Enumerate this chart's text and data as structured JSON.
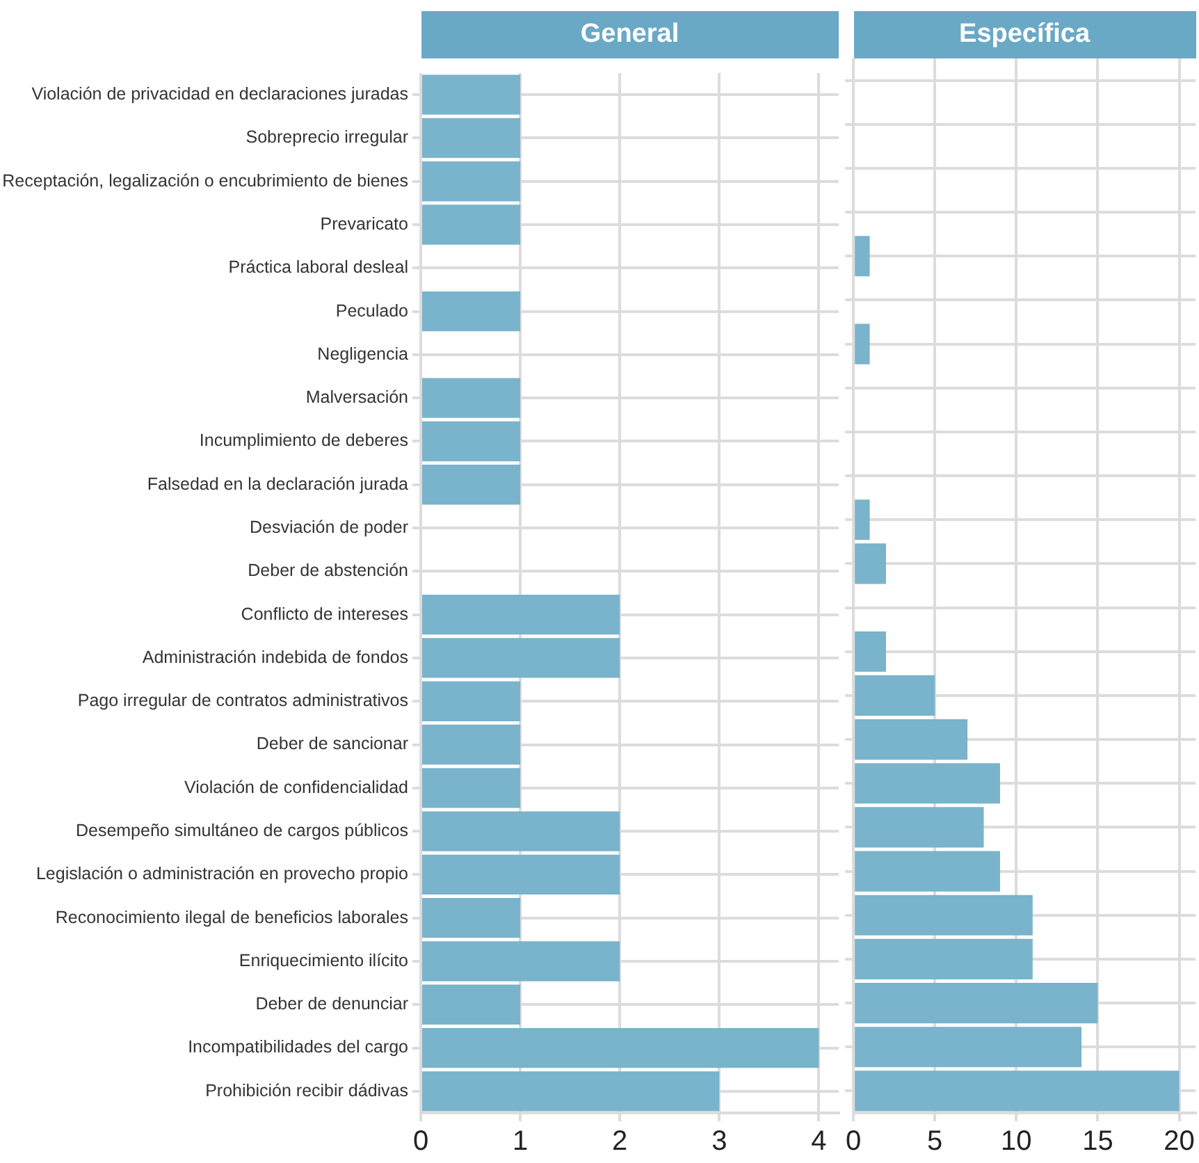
{
  "chart_data": [
    {
      "type": "bar",
      "orientation": "horizontal",
      "title": "General",
      "categories": [
        "Violación de privacidad en declaraciones juradas",
        "Sobreprecio irregular",
        "Receptación, legalización o encubrimiento de bienes",
        "Prevaricato",
        "Práctica laboral desleal",
        "Peculado",
        "Negligencia",
        "Malversación",
        "Incumplimiento de deberes",
        "Falsedad en la declaración jurada",
        "Desviación de poder",
        "Deber de abstención",
        "Conflicto de intereses",
        "Administración indebida de fondos",
        "Pago irregular de contratos administrativos",
        "Deber de sancionar",
        "Violación de confidencialidad",
        "Desempeño simultáneo de cargos públicos",
        "Legislación o administración en provecho propio",
        "Reconocimiento ilegal de beneficios laborales",
        "Enriquecimiento ilícito",
        "Deber de denunciar",
        "Incompatibilidades del cargo",
        "Prohibición recibir dádivas"
      ],
      "values": [
        1,
        1,
        1,
        1,
        null,
        1,
        null,
        1,
        1,
        1,
        null,
        null,
        2,
        2,
        1,
        1,
        1,
        2,
        2,
        1,
        2,
        1,
        4,
        3
      ],
      "color": "#7ab3cc",
      "xlim": [
        0,
        4.2
      ],
      "xticks": [
        0,
        1,
        2,
        3,
        4
      ],
      "grid": true
    },
    {
      "type": "bar",
      "orientation": "horizontal",
      "title": "Específica",
      "categories": [
        null,
        null,
        null,
        null,
        null,
        null,
        null,
        null,
        null,
        null,
        null,
        null,
        null,
        null,
        null,
        null,
        null,
        null,
        null,
        null,
        null,
        null,
        null,
        null
      ],
      "values": [
        null,
        null,
        null,
        null,
        1,
        null,
        1,
        null,
        null,
        null,
        1,
        2,
        null,
        2,
        5,
        7,
        9,
        8,
        9,
        11,
        11,
        15,
        14,
        20
      ],
      "color": "#7ab3cc",
      "xlim": [
        0,
        21
      ],
      "xticks": [
        0,
        5,
        10,
        15,
        20
      ],
      "grid": true,
      "tick_labels": "x"
    }
  ]
}
